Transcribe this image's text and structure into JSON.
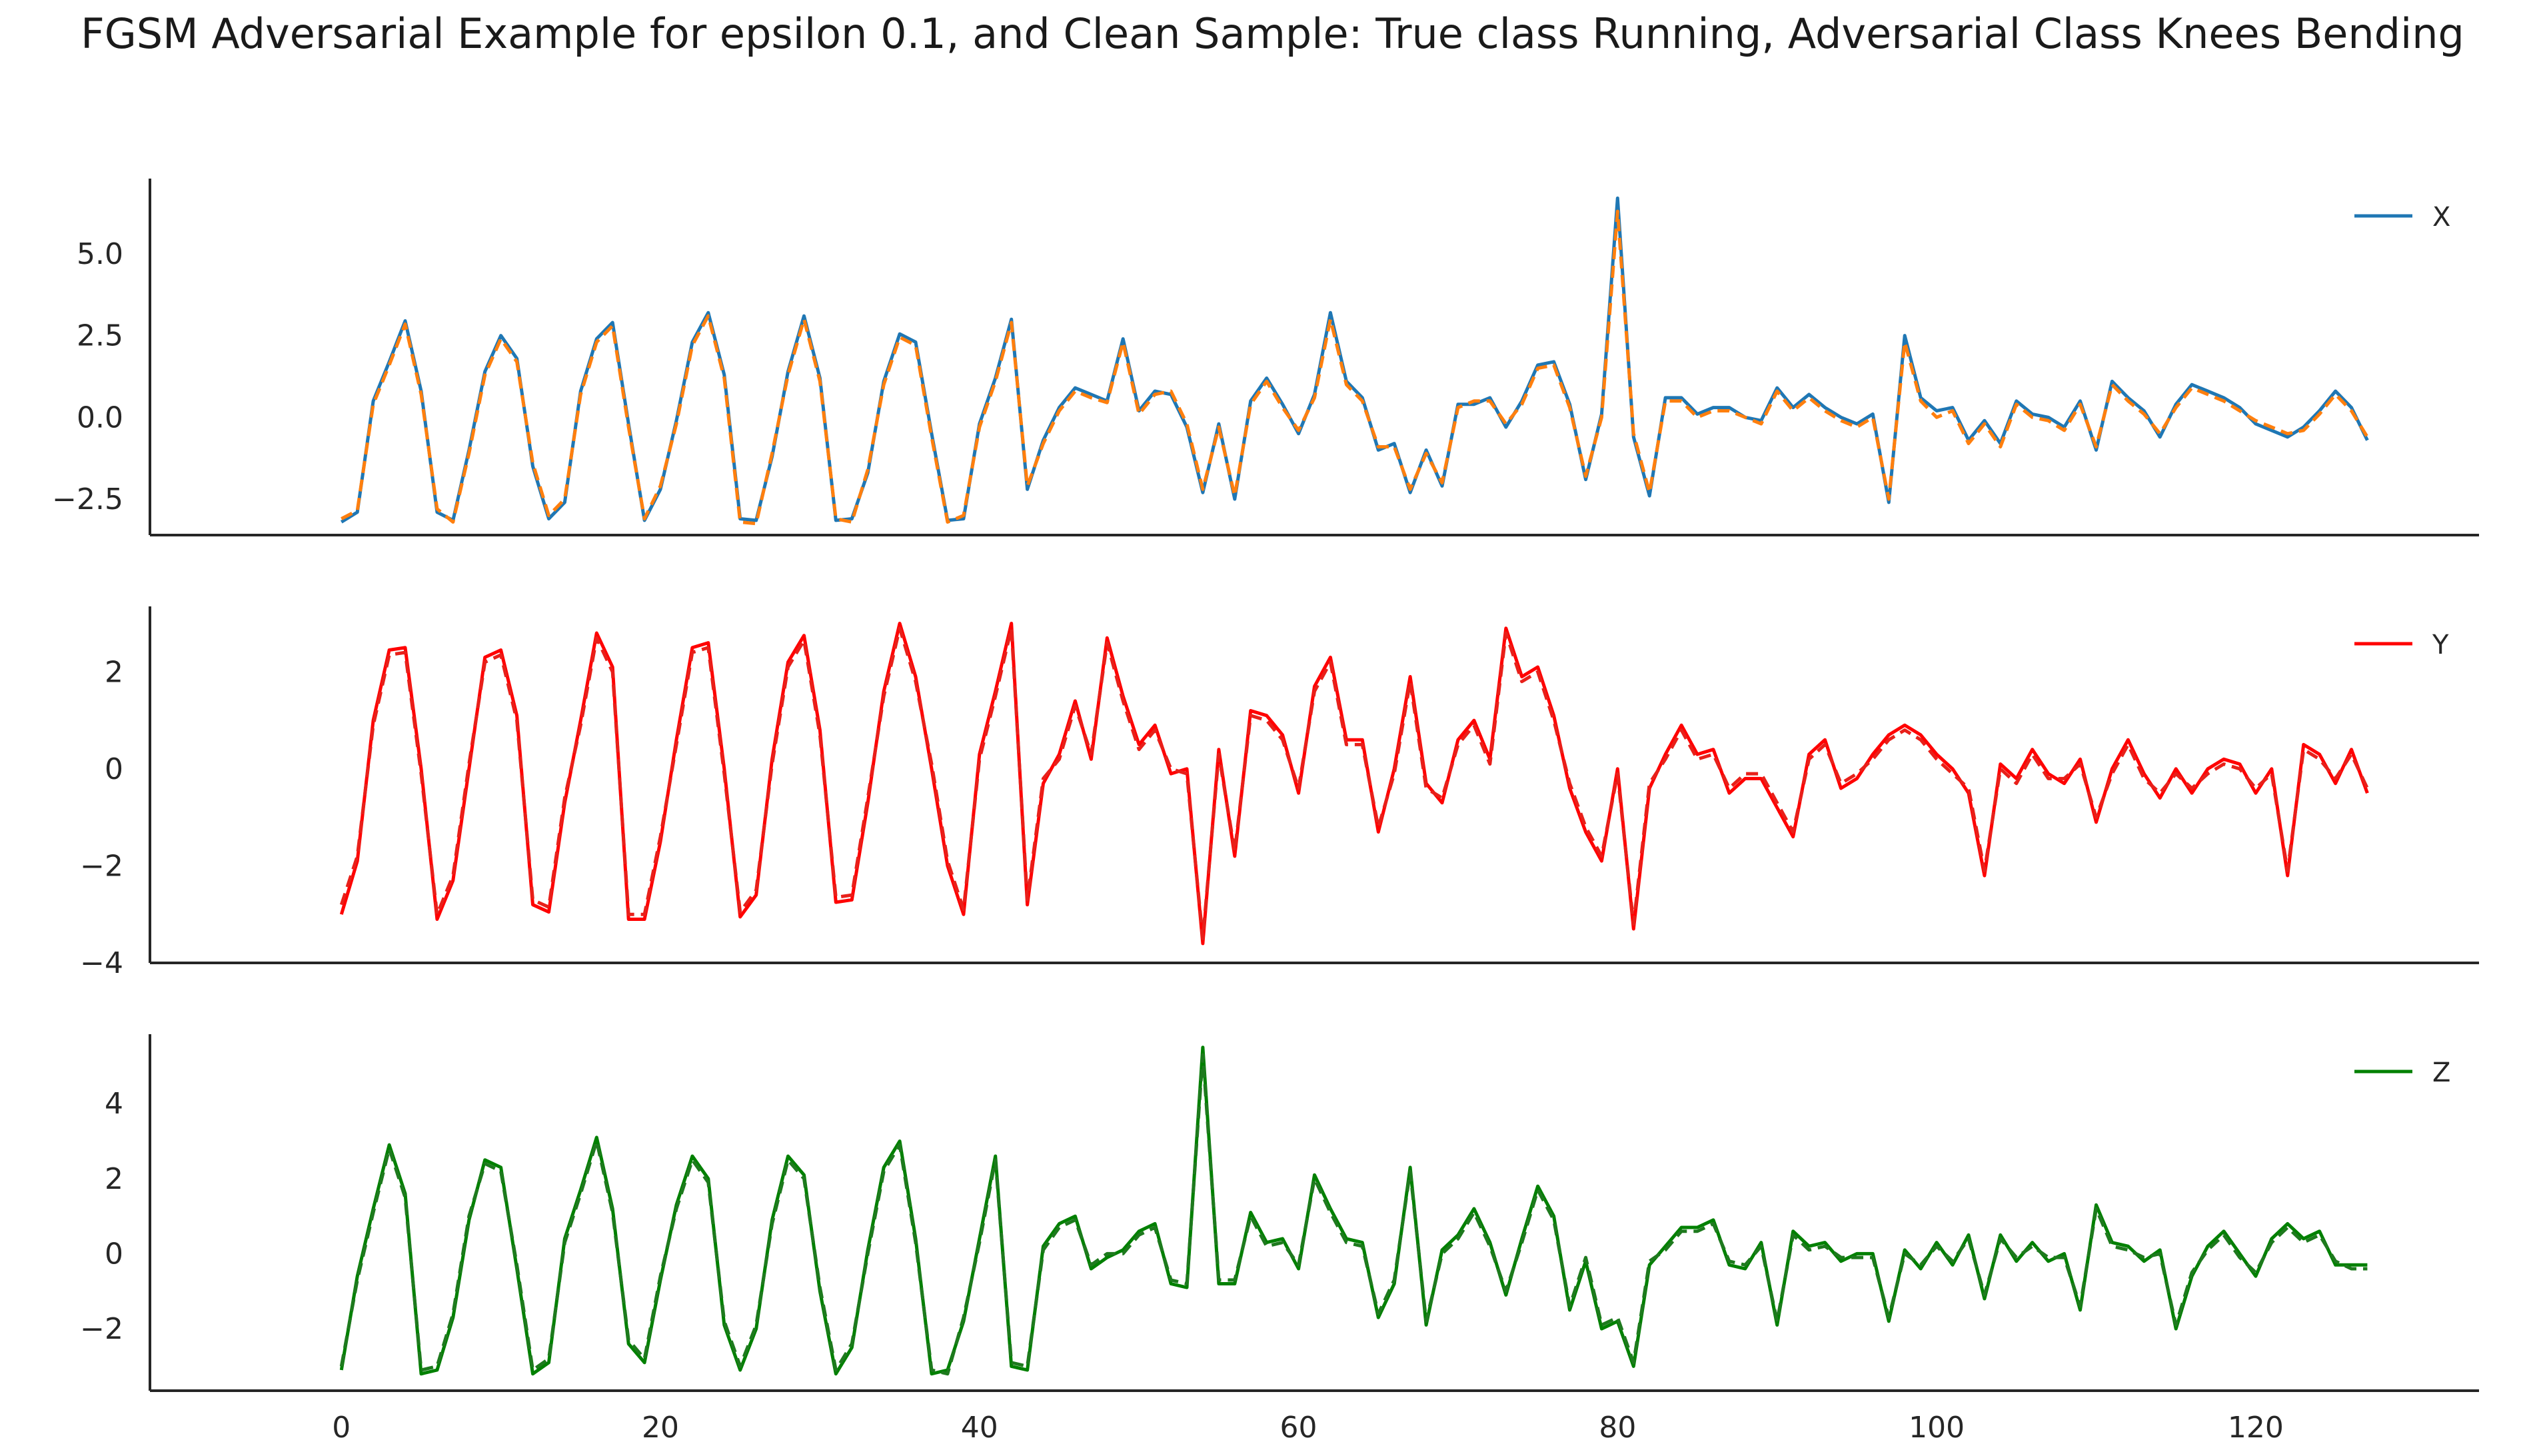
{
  "figure": {
    "title": "FGSM Adversarial Example for epsilon 0.1, and Clean Sample: True class Running, Adversarial Class Knees Bending"
  },
  "chart_data": {
    "type": "line",
    "title": "FGSM Adversarial Example for epsilon 0.1, and Clean Sample: True class Running, Adversarial Class Knees Bending",
    "grid": false,
    "x_axis": {
      "xlim": [
        -12,
        134
      ],
      "ticks": [
        0,
        20,
        40,
        60,
        80,
        100,
        120
      ],
      "tick_labels": [
        "0",
        "20",
        "40",
        "60",
        "80",
        "100",
        "120"
      ],
      "shared": true
    },
    "note_series": "each panel: solid line = clean sample, dashed line = adversarial sample (epsilon 0.1)",
    "panels": [
      {
        "legend_label": "X",
        "legend_position": "top-right",
        "color": "#1f77b4",
        "adv_color": "#ff7f0e",
        "ylim": [
          -3.6,
          7.3
        ],
        "yticks": [
          -2.5,
          0.0,
          2.5,
          5.0
        ],
        "ytick_labels": [
          "−2.5",
          "0.0",
          "2.5",
          "5.0"
        ],
        "clean": [
          -3.2,
          -2.9,
          0.5,
          1.7,
          2.95,
          0.8,
          -2.9,
          -3.15,
          -1.0,
          1.4,
          2.5,
          1.8,
          -1.5,
          -3.1,
          -2.6,
          0.8,
          2.4,
          2.9,
          -0.2,
          -3.15,
          -2.2,
          -0.1,
          2.3,
          3.2,
          1.3,
          -3.1,
          -3.15,
          -1.2,
          1.4,
          3.1,
          1.2,
          -3.15,
          -3.1,
          -1.7,
          1.1,
          2.55,
          2.3,
          -0.5,
          -3.15,
          -3.1,
          -0.2,
          1.2,
          3.0,
          -2.2,
          -0.7,
          0.3,
          0.9,
          0.7,
          0.5,
          2.4,
          0.2,
          0.8,
          0.7,
          -0.3,
          -2.3,
          -0.2,
          -2.5,
          0.5,
          1.2,
          0.4,
          -0.5,
          0.7,
          3.2,
          1.1,
          0.6,
          -1.0,
          -0.8,
          -2.3,
          -1.0,
          -2.1,
          0.4,
          0.4,
          0.6,
          -0.3,
          0.5,
          1.6,
          1.7,
          0.4,
          -1.9,
          0.1,
          6.7,
          -0.6,
          -2.4,
          0.6,
          0.6,
          0.1,
          0.3,
          0.3,
          0.0,
          -0.1,
          0.9,
          0.3,
          0.7,
          0.3,
          0.0,
          -0.2,
          0.1,
          -2.6,
          2.5,
          0.6,
          0.2,
          0.3,
          -0.7,
          -0.1,
          -0.8,
          0.5,
          0.1,
          0.0,
          -0.3,
          0.5,
          -1.0,
          1.1,
          0.6,
          0.2,
          -0.6,
          0.4,
          1.0,
          0.8,
          0.6,
          0.3,
          -0.2,
          -0.4,
          -0.6,
          -0.3,
          0.2,
          0.8,
          0.3,
          -0.7
        ],
        "adversarial": [
          -3.1,
          -2.85,
          0.4,
          1.6,
          2.85,
          0.7,
          -2.8,
          -3.2,
          -1.1,
          1.3,
          2.4,
          1.7,
          -1.4,
          -3.0,
          -2.5,
          0.7,
          2.3,
          2.8,
          -0.3,
          -3.1,
          -2.1,
          -0.2,
          2.2,
          3.1,
          1.2,
          -3.2,
          -3.25,
          -1.1,
          1.3,
          3.0,
          1.1,
          -3.1,
          -3.2,
          -1.6,
          1.0,
          2.45,
          2.2,
          -0.6,
          -3.2,
          -3.0,
          -0.3,
          1.1,
          2.9,
          -2.1,
          -0.8,
          0.2,
          0.8,
          0.6,
          0.45,
          2.3,
          0.1,
          0.7,
          0.8,
          -0.2,
          -2.2,
          -0.3,
          -2.4,
          0.4,
          1.1,
          0.3,
          -0.4,
          0.6,
          3.0,
          1.0,
          0.5,
          -0.9,
          -0.9,
          -2.2,
          -1.1,
          -2.0,
          0.3,
          0.5,
          0.5,
          -0.2,
          0.4,
          1.5,
          1.6,
          0.3,
          -1.8,
          0.0,
          6.3,
          -0.5,
          -2.3,
          0.5,
          0.5,
          0.0,
          0.2,
          0.2,
          0.0,
          -0.2,
          0.8,
          0.2,
          0.6,
          0.2,
          -0.1,
          -0.3,
          0.0,
          -2.5,
          2.3,
          0.5,
          0.0,
          0.2,
          -0.8,
          -0.2,
          -0.9,
          0.4,
          0.0,
          -0.1,
          -0.4,
          0.4,
          -0.9,
          1.0,
          0.5,
          0.1,
          -0.5,
          0.3,
          0.9,
          0.7,
          0.5,
          0.2,
          -0.1,
          -0.3,
          -0.5,
          -0.4,
          0.1,
          0.7,
          0.2,
          -0.6
        ]
      },
      {
        "legend_label": "Y",
        "legend_position": "top-right",
        "color": "#ff0000",
        "adv_color": "#e8201a",
        "ylim": [
          -4.0,
          3.35
        ],
        "yticks": [
          -4,
          -2,
          0,
          2
        ],
        "ytick_labels": [
          "−4",
          "−2",
          "0",
          "2"
        ],
        "clean": [
          -3.0,
          -1.9,
          1.0,
          2.45,
          2.5,
          0.0,
          -3.1,
          -2.3,
          0.0,
          2.3,
          2.45,
          1.1,
          -2.8,
          -2.95,
          -0.7,
          1.0,
          2.8,
          2.1,
          -3.1,
          -3.1,
          -1.5,
          0.6,
          2.5,
          2.6,
          0.0,
          -3.05,
          -2.6,
          0.2,
          2.2,
          2.75,
          0.8,
          -2.75,
          -2.7,
          -0.7,
          1.6,
          3.0,
          1.9,
          0.0,
          -2.0,
          -3.0,
          0.3,
          1.6,
          3.0,
          -2.8,
          -0.3,
          0.3,
          1.4,
          0.2,
          2.7,
          1.5,
          0.5,
          0.9,
          -0.1,
          0.0,
          -3.6,
          0.4,
          -1.8,
          1.2,
          1.1,
          0.7,
          -0.5,
          1.7,
          2.3,
          0.6,
          0.6,
          -1.3,
          0.0,
          1.9,
          -0.3,
          -0.7,
          0.6,
          1.0,
          0.2,
          2.9,
          1.9,
          2.1,
          1.1,
          -0.4,
          -1.3,
          -1.9,
          0.0,
          -3.3,
          -0.4,
          0.3,
          0.9,
          0.3,
          0.4,
          -0.5,
          -0.2,
          -0.2,
          -0.8,
          -1.4,
          0.3,
          0.6,
          -0.4,
          -0.2,
          0.3,
          0.7,
          0.9,
          0.7,
          0.3,
          0.0,
          -0.5,
          -2.2,
          0.1,
          -0.2,
          0.4,
          -0.1,
          -0.3,
          0.2,
          -1.1,
          0.0,
          0.6,
          -0.1,
          -0.6,
          0.0,
          -0.5,
          0.0,
          0.2,
          0.1,
          -0.5,
          0.0,
          -2.2,
          0.5,
          0.3,
          -0.3,
          0.4,
          -0.5
        ],
        "adversarial": [
          -2.8,
          -1.8,
          0.9,
          2.35,
          2.4,
          -0.1,
          -3.0,
          -2.2,
          0.1,
          2.2,
          2.35,
          1.0,
          -2.7,
          -2.85,
          -0.6,
          0.9,
          2.7,
          2.0,
          -3.0,
          -3.0,
          -1.4,
          0.5,
          2.4,
          2.5,
          -0.1,
          -2.95,
          -2.5,
          0.1,
          2.1,
          2.65,
          0.7,
          -2.65,
          -2.6,
          -0.6,
          1.5,
          2.9,
          1.8,
          0.1,
          -1.9,
          -2.9,
          0.2,
          1.5,
          2.9,
          -2.7,
          -0.2,
          0.2,
          1.3,
          0.3,
          2.6,
          1.4,
          0.4,
          0.8,
          0.0,
          -0.1,
          -3.5,
          0.3,
          -1.7,
          1.1,
          1.0,
          0.6,
          -0.4,
          1.6,
          2.2,
          0.5,
          0.5,
          -1.2,
          -0.1,
          1.8,
          -0.4,
          -0.6,
          0.5,
          0.9,
          0.1,
          2.8,
          1.8,
          2.0,
          1.0,
          -0.3,
          -1.2,
          -1.8,
          -0.1,
          -3.2,
          -0.3,
          0.2,
          0.8,
          0.2,
          0.3,
          -0.4,
          -0.1,
          -0.1,
          -0.7,
          -1.3,
          0.2,
          0.5,
          -0.3,
          -0.1,
          0.2,
          0.6,
          0.8,
          0.6,
          0.2,
          -0.1,
          -0.4,
          -2.1,
          0.0,
          -0.3,
          0.3,
          -0.2,
          -0.2,
          0.1,
          -1.0,
          -0.1,
          0.5,
          -0.2,
          -0.5,
          -0.1,
          -0.4,
          -0.1,
          0.1,
          0.0,
          -0.4,
          -0.1,
          -2.1,
          0.4,
          0.2,
          -0.2,
          0.3,
          -0.4
        ]
      },
      {
        "legend_label": "Z",
        "legend_position": "top-right",
        "color": "#008000",
        "adv_color": "#1e7a1e",
        "ylim": [
          -3.65,
          5.85
        ],
        "yticks": [
          -2,
          0,
          2,
          4
        ],
        "ytick_labels": [
          "−2",
          "0",
          "2",
          "4"
        ],
        "clean": [
          -3.1,
          -0.6,
          1.2,
          2.9,
          1.6,
          -3.2,
          -3.1,
          -1.7,
          0.9,
          2.5,
          2.3,
          -0.4,
          -3.2,
          -2.9,
          0.4,
          1.7,
          3.1,
          1.2,
          -2.4,
          -2.9,
          -0.7,
          1.3,
          2.6,
          2.0,
          -1.9,
          -3.1,
          -2.0,
          0.9,
          2.6,
          2.1,
          -1.0,
          -3.2,
          -2.5,
          0.1,
          2.3,
          3.0,
          0.4,
          -3.2,
          -3.1,
          -1.8,
          0.4,
          2.6,
          -3.0,
          -3.1,
          0.2,
          0.8,
          1.0,
          -0.4,
          -0.1,
          0.1,
          0.6,
          0.8,
          -0.8,
          -0.9,
          5.5,
          -0.8,
          -0.8,
          1.1,
          0.3,
          0.4,
          -0.4,
          2.1,
          1.2,
          0.4,
          0.3,
          -1.7,
          -0.8,
          2.3,
          -1.9,
          0.1,
          0.5,
          1.2,
          0.3,
          -1.1,
          0.4,
          1.8,
          1.0,
          -1.5,
          -0.2,
          -2.0,
          -1.8,
          -3.0,
          -0.3,
          0.2,
          0.7,
          0.7,
          0.9,
          -0.3,
          -0.4,
          0.3,
          -1.9,
          0.6,
          0.2,
          0.3,
          -0.2,
          0.0,
          0.0,
          -1.8,
          0.1,
          -0.4,
          0.3,
          -0.3,
          0.5,
          -1.2,
          0.5,
          -0.2,
          0.3,
          -0.2,
          0.0,
          -1.5,
          1.3,
          0.3,
          0.2,
          -0.2,
          0.1,
          -2.0,
          -0.6,
          0.2,
          0.6,
          0.0,
          -0.6,
          0.4,
          0.8,
          0.4,
          0.6,
          -0.3,
          -0.3,
          -0.3
        ],
        "adversarial": [
          -3.0,
          -0.7,
          1.1,
          2.8,
          1.5,
          -3.1,
          -3.0,
          -1.6,
          1.0,
          2.4,
          2.2,
          -0.3,
          -3.1,
          -2.8,
          0.3,
          1.6,
          3.0,
          1.1,
          -2.3,
          -2.8,
          -0.6,
          1.2,
          2.5,
          1.9,
          -1.8,
          -3.0,
          -1.9,
          0.8,
          2.5,
          2.0,
          -0.9,
          -3.1,
          -2.4,
          0.0,
          2.2,
          2.9,
          0.3,
          -3.1,
          -3.2,
          -1.7,
          0.3,
          2.5,
          -2.9,
          -3.0,
          0.1,
          0.7,
          0.9,
          -0.3,
          0.0,
          0.0,
          0.5,
          0.7,
          -0.7,
          -0.8,
          5.3,
          -0.7,
          -0.7,
          1.0,
          0.2,
          0.3,
          -0.3,
          2.0,
          1.1,
          0.3,
          0.2,
          -1.6,
          -0.7,
          2.2,
          -1.8,
          0.0,
          0.4,
          1.1,
          0.2,
          -1.0,
          0.3,
          1.7,
          0.9,
          -1.4,
          -0.1,
          -1.9,
          -1.7,
          -2.9,
          -0.2,
          0.1,
          0.6,
          0.6,
          0.8,
          -0.2,
          -0.3,
          0.2,
          -1.8,
          0.5,
          0.1,
          0.2,
          -0.1,
          -0.1,
          -0.1,
          -1.7,
          0.0,
          -0.3,
          0.2,
          -0.2,
          0.4,
          -1.1,
          0.4,
          -0.1,
          0.2,
          -0.1,
          -0.1,
          -1.4,
          1.2,
          0.2,
          0.1,
          -0.1,
          0.0,
          -1.9,
          -0.5,
          0.1,
          0.5,
          -0.1,
          -0.5,
          0.3,
          0.7,
          0.3,
          0.5,
          -0.2,
          -0.4,
          -0.4
        ]
      }
    ]
  }
}
